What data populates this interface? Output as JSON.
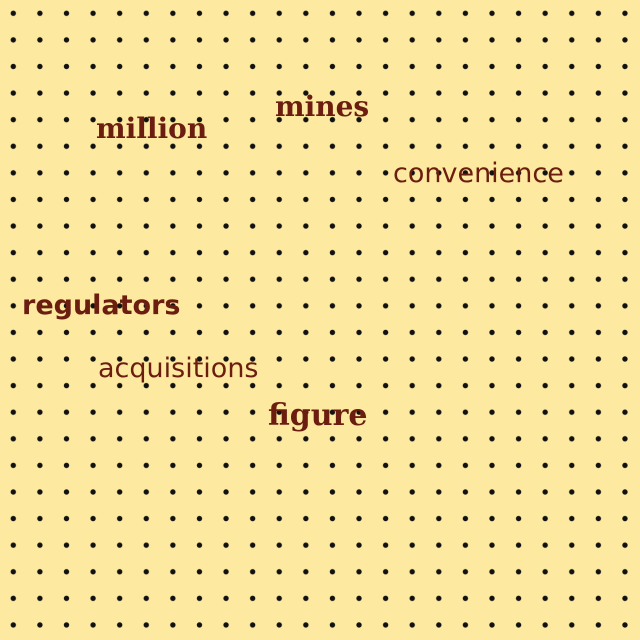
{
  "colors": {
    "background": "#fde9a0",
    "dots": "#111111",
    "text": "#6b1d10"
  },
  "words": {
    "million": "million",
    "mines": "mines",
    "convenience": "convenience",
    "regulators": "regulators",
    "acquisitions": "acquisitions",
    "figure": "figure"
  }
}
